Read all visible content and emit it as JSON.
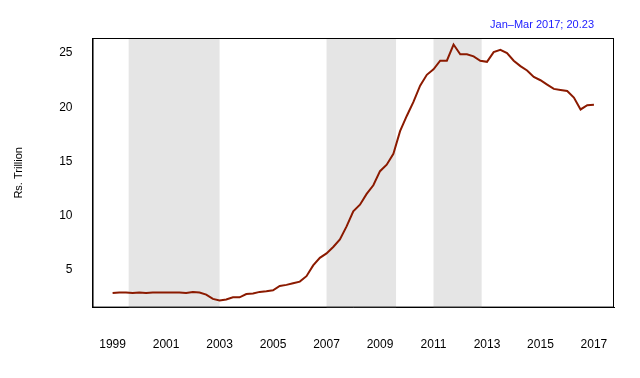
{
  "chart_data": {
    "type": "line",
    "y_label": "Rs. Trillion",
    "annotation": "Jan–Mar 2017; 20.23",
    "x": [
      1999,
      1999.25,
      1999.5,
      1999.75,
      2000,
      2000.25,
      2000.5,
      2000.75,
      2001,
      2001.25,
      2001.5,
      2001.75,
      2002,
      2002.25,
      2002.5,
      2002.75,
      2003,
      2003.25,
      2003.5,
      2003.75,
      2004,
      2004.25,
      2004.5,
      2004.75,
      2005,
      2005.25,
      2005.5,
      2005.75,
      2006,
      2006.25,
      2006.5,
      2006.75,
      2007,
      2007.25,
      2007.5,
      2007.75,
      2008,
      2008.25,
      2008.5,
      2008.75,
      2009,
      2009.25,
      2009.5,
      2009.75,
      2010,
      2010.25,
      2010.5,
      2010.75,
      2011,
      2011.25,
      2011.5,
      2011.75,
      2012,
      2012.25,
      2012.5,
      2012.75,
      2013,
      2013.25,
      2013.5,
      2013.75,
      2014,
      2014.25,
      2014.5,
      2014.75,
      2015,
      2015.25,
      2015.5,
      2015.75,
      2016,
      2016.25,
      2016.5,
      2016.75,
      2017
    ],
    "values": [
      2.85,
      2.9,
      2.9,
      2.85,
      2.9,
      2.85,
      2.9,
      2.9,
      2.9,
      2.9,
      2.9,
      2.85,
      2.95,
      2.9,
      2.7,
      2.3,
      2.15,
      2.25,
      2.45,
      2.45,
      2.75,
      2.8,
      2.95,
      3.0,
      3.1,
      3.5,
      3.6,
      3.75,
      3.9,
      4.4,
      5.4,
      6.1,
      6.5,
      7.1,
      7.8,
      9.0,
      10.4,
      11.0,
      12.0,
      12.8,
      14.1,
      14.7,
      15.7,
      17.8,
      19.2,
      20.5,
      22.0,
      23.0,
      23.5,
      24.3,
      24.3,
      25.8,
      24.9,
      24.9,
      24.7,
      24.3,
      24.2,
      25.1,
      25.3,
      25.0,
      24.3,
      23.8,
      23.4,
      22.8,
      22.5,
      22.1,
      21.7,
      21.6,
      21.5,
      20.9,
      19.8,
      20.2,
      20.23
    ],
    "color": "#8b1a00",
    "shaded_ranges": [
      [
        1999.6,
        2003.0
      ],
      [
        2007.0,
        2009.6
      ],
      [
        2011.0,
        2012.8
      ]
    ],
    "xlim": [
      1998.25,
      2017.75
    ],
    "xticks": [
      1999,
      2001,
      2003,
      2005,
      2007,
      2009,
      2011,
      2013,
      2015,
      2017
    ],
    "ylim": [
      1.5,
      26.4
    ],
    "yticks": [
      5,
      10,
      15,
      20,
      25
    ],
    "grid": false
  }
}
